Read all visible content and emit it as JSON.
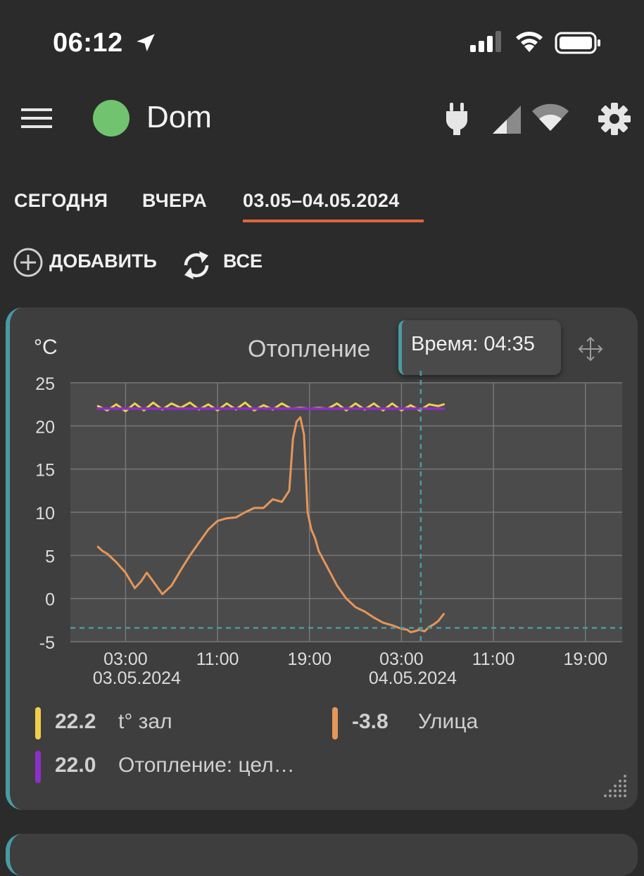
{
  "status_bar": {
    "time": "06:12",
    "icons": [
      "location-arrow-icon",
      "cell-signal-icon",
      "wifi-icon",
      "battery-icon"
    ]
  },
  "header": {
    "title": "Dom",
    "status_color": "#72c36f",
    "icons": [
      "menu-icon",
      "plug-icon",
      "cell-signal-icon",
      "wifi-icon",
      "gear-icon"
    ]
  },
  "tabs": [
    {
      "label": "СЕГОДНЯ"
    },
    {
      "label": "ВЧЕРА"
    },
    {
      "label": "03.05–04.05.2024",
      "active": true
    }
  ],
  "accent_color": "#e0663c",
  "actions": {
    "add_label": "ДОБАВИТЬ",
    "all_label": "ВСЕ"
  },
  "card": {
    "unit": "°C",
    "title": "Отопление",
    "tooltip": "Время: 04:35",
    "accent_color": "#4a9aa3"
  },
  "chart_data": {
    "type": "line",
    "title": "Отопление",
    "ylabel": "°C",
    "ylim": [
      -5,
      25
    ],
    "yticks": [
      25,
      20,
      15,
      10,
      5,
      0,
      -5
    ],
    "xlim_hours": [
      -3,
      57
    ],
    "xticks": [
      {
        "hour": 3,
        "label": "03:00",
        "date": "03.05.2024"
      },
      {
        "hour": 13,
        "label": "11:00",
        "date": ""
      },
      {
        "hour": 23,
        "label": "19:00",
        "date": ""
      },
      {
        "hour": 33,
        "label": "03:00",
        "date": "04.05.2024"
      },
      {
        "hour": 43,
        "label": "11:00",
        "date": ""
      },
      {
        "hour": 53,
        "label": "19:00",
        "date": ""
      }
    ],
    "grid": true,
    "crosshair": {
      "x_hour": 35.1,
      "y": -3.4
    },
    "series": [
      {
        "name": "t° зал",
        "color": "#f0d04a",
        "x": [
          0,
          1,
          2,
          3,
          4,
          5,
          6,
          7,
          8,
          9,
          10,
          11,
          12,
          13,
          14,
          15,
          16,
          17,
          18,
          19,
          20,
          21,
          22,
          23,
          24,
          25,
          26,
          27,
          28,
          29,
          30,
          31,
          32,
          33,
          34,
          35,
          36,
          37,
          37.6
        ],
        "y": [
          22.3,
          21.8,
          22.5,
          21.7,
          22.6,
          21.8,
          22.7,
          21.9,
          22.6,
          22.1,
          22.7,
          21.9,
          22.5,
          21.8,
          22.6,
          21.9,
          22.7,
          21.8,
          22.4,
          21.9,
          22.6,
          22.0,
          22.1,
          22.0,
          22.1,
          22.0,
          22.6,
          21.8,
          22.6,
          21.9,
          22.6,
          21.8,
          22.6,
          21.8,
          22.4,
          21.8,
          22.5,
          22.3,
          22.5
        ]
      },
      {
        "name": "Улица",
        "color": "#e5965a",
        "x": [
          0,
          0.5,
          1,
          2,
          3,
          4,
          4.7,
          5.3,
          6,
          7,
          7.5,
          8,
          9,
          10,
          11,
          12,
          13,
          14,
          15,
          16,
          17,
          18,
          19,
          20,
          20.8,
          21.2,
          21.6,
          22,
          22.4,
          22.8,
          23.2,
          23.6,
          24,
          25,
          26,
          27,
          28,
          29,
          30,
          31,
          32,
          33,
          33.6,
          34,
          34.4,
          35,
          35.5,
          36,
          36.5,
          37,
          37.6
        ],
        "y": [
          6.0,
          5.5,
          5.2,
          4.2,
          3.0,
          1.2,
          2.0,
          3.0,
          2.0,
          0.5,
          1.0,
          1.5,
          3.3,
          5.0,
          6.5,
          8.0,
          9.0,
          9.3,
          9.4,
          10.0,
          10.5,
          10.5,
          11.5,
          11.2,
          12.5,
          18.5,
          20.5,
          21.0,
          19.0,
          10.0,
          8.0,
          7.0,
          5.5,
          3.5,
          1.5,
          0.0,
          -1.0,
          -1.5,
          -2.2,
          -2.8,
          -3.1,
          -3.5,
          -3.6,
          -3.9,
          -3.8,
          -3.6,
          -3.8,
          -3.3,
          -3.0,
          -2.6,
          -1.8
        ]
      },
      {
        "name": "Отопление: цел...",
        "color": "#8d2fc8",
        "x": [
          0,
          37.6
        ],
        "y": [
          22.0,
          22.0
        ]
      }
    ]
  },
  "legend": [
    {
      "value": "22.2",
      "name": "t° зал",
      "color": "#f0d04a"
    },
    {
      "value": "-3.8",
      "name": "Улица",
      "color": "#e5965a"
    },
    {
      "value": "22.0",
      "name": "Отопление: цел…",
      "color": "#8d2fc8"
    }
  ]
}
